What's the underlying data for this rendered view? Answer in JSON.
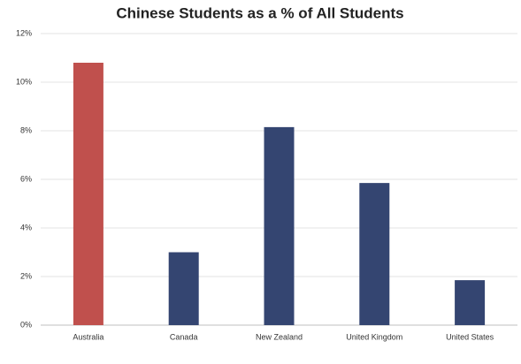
{
  "chart_data": {
    "type": "bar",
    "title": "Chinese Students as a % of All Students",
    "categories": [
      "Australia",
      "Canada",
      "New Zealand",
      "United Kingdom",
      "United States"
    ],
    "values": [
      10.8,
      3.0,
      8.15,
      5.85,
      1.85
    ],
    "colors": [
      "#c0504d",
      "#344571",
      "#344571",
      "#344571",
      "#344571"
    ],
    "ylim": [
      0,
      12
    ],
    "yticks": [
      {
        "value": 0,
        "label": "0%"
      },
      {
        "value": 2,
        "label": "2%"
      },
      {
        "value": 4,
        "label": "4%"
      },
      {
        "value": 6,
        "label": "6%"
      },
      {
        "value": 8,
        "label": "8%"
      },
      {
        "value": 10,
        "label": "10%"
      },
      {
        "value": 12,
        "label": "12%"
      }
    ],
    "grid": true
  }
}
